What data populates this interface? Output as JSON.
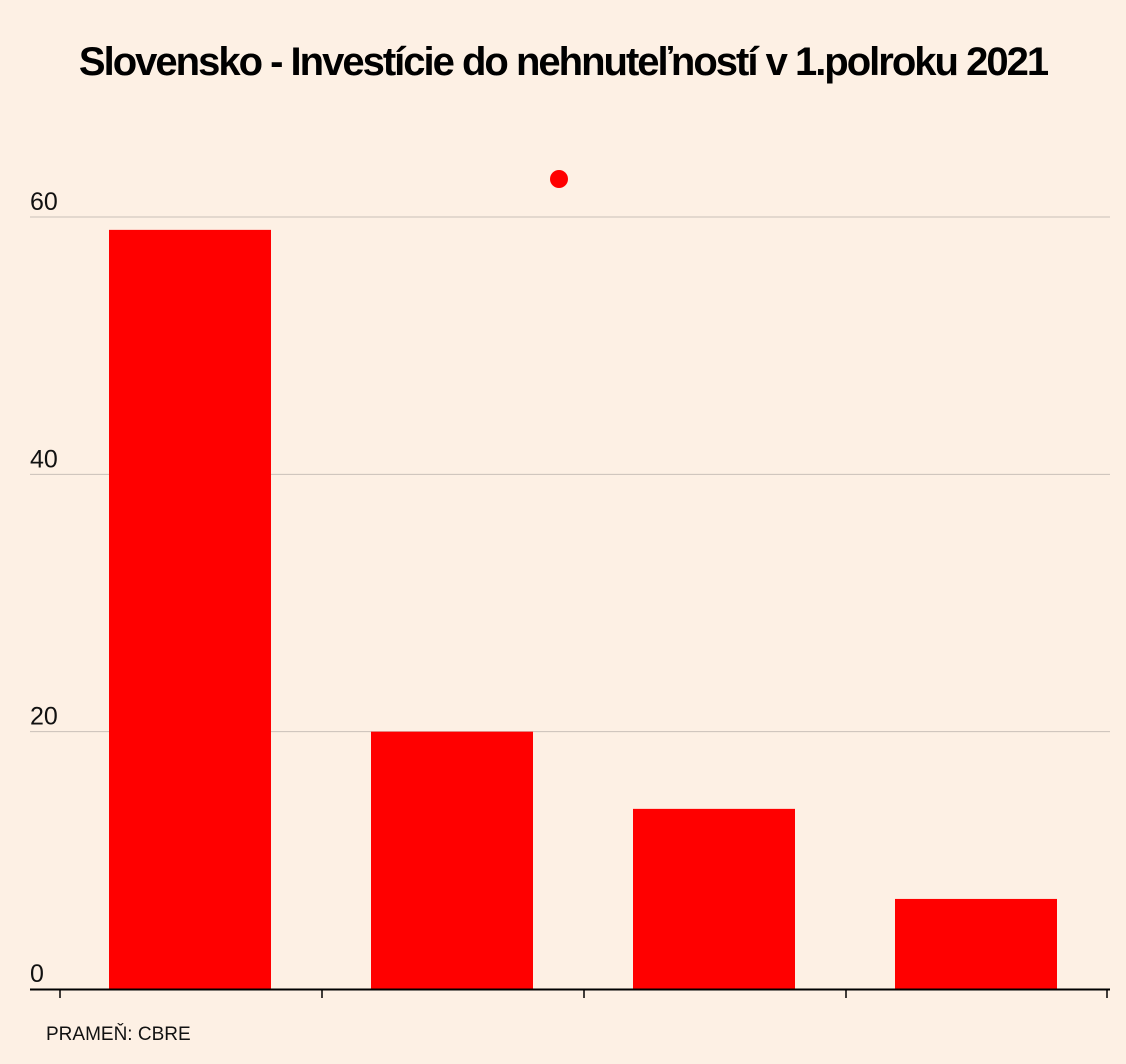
{
  "title": "Slovensko - Investície do nehnuteľností v 1.polroku 2021",
  "source": "PRAMEŇ: CBRE",
  "colors": {
    "background": "#fdf0e4",
    "bar": "#ff0000",
    "grid": "#c9c0b8",
    "axis": "#000000"
  },
  "chart_data": {
    "type": "bar",
    "title": "Slovensko - Investície do nehnuteľností v 1.polroku 2021",
    "categories": [
      "",
      "",
      "",
      ""
    ],
    "values": [
      59,
      20,
      14,
      7
    ],
    "ylim": [
      0,
      60
    ],
    "yticks": [
      0,
      20,
      40,
      60
    ],
    "grid": true,
    "legend": "top-center",
    "legend_marker_color": "#ff0000",
    "xlabel": "",
    "ylabel": ""
  }
}
